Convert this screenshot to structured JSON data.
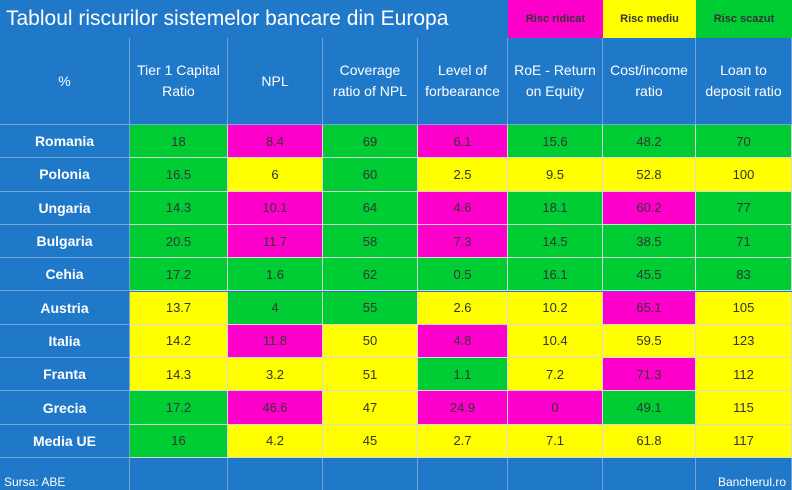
{
  "title": "Tabloul riscurilor sistemelor bancare din Europa",
  "legend": [
    {
      "label": "Risc ridicat",
      "color": "#ff00cc"
    },
    {
      "label": "Risc mediu",
      "color": "#ffff00"
    },
    {
      "label": "Risc scazut",
      "color": "#00cc33"
    }
  ],
  "colors": {
    "background": "#1f78c8",
    "high": "#ff00cc",
    "medium": "#ffff00",
    "low": "#00cc33"
  },
  "chart_data": {
    "type": "table",
    "title": "Tabloul riscurilor sistemelor bancare din Europa",
    "corner_label": "%",
    "columns": [
      "Tier 1 Capital Ratio",
      "NPL",
      "Coverage ratio of NPL",
      "Level of forbearance",
      "RoE  - Return on Equity",
      "Cost/income ratio",
      "Loan to deposit ratio"
    ],
    "rows": [
      {
        "label": "Romania",
        "values": [
          "18",
          "8.4",
          "69",
          "6.1",
          "15.6",
          "48.2",
          "70"
        ],
        "risk": [
          "low",
          "high",
          "low",
          "high",
          "low",
          "low",
          "low"
        ]
      },
      {
        "label": "Polonia",
        "values": [
          "16.5",
          "6",
          "60",
          "2.5",
          "9.5",
          "52.8",
          "100"
        ],
        "risk": [
          "low",
          "medium",
          "low",
          "medium",
          "medium",
          "medium",
          "medium"
        ]
      },
      {
        "label": "Ungaria",
        "values": [
          "14.3",
          "10.1",
          "64",
          "4.6",
          "18.1",
          "60.2",
          "77"
        ],
        "risk": [
          "low",
          "high",
          "low",
          "high",
          "low",
          "high",
          "low"
        ]
      },
      {
        "label": "Bulgaria",
        "values": [
          "20.5",
          "11.7",
          "58",
          "7.3",
          "14.5",
          "38.5",
          "71"
        ],
        "risk": [
          "low",
          "high",
          "low",
          "high",
          "low",
          "low",
          "low"
        ]
      },
      {
        "label": "Cehia",
        "values": [
          "17.2",
          "1.6",
          "62",
          "0.5",
          "16.1",
          "45.5",
          "83"
        ],
        "risk": [
          "low",
          "low",
          "low",
          "low",
          "low",
          "low",
          "low"
        ]
      },
      {
        "label": "Austria",
        "values": [
          "13.7",
          "4",
          "55",
          "2.6",
          "10.2",
          "65.1",
          "105"
        ],
        "risk": [
          "medium",
          "low",
          "low",
          "medium",
          "medium",
          "high",
          "medium"
        ]
      },
      {
        "label": "Italia",
        "values": [
          "14.2",
          "11.8",
          "50",
          "4.8",
          "10.4",
          "59.5",
          "123"
        ],
        "risk": [
          "medium",
          "high",
          "medium",
          "high",
          "medium",
          "medium",
          "medium"
        ]
      },
      {
        "label": "Franta",
        "values": [
          "14.3",
          "3.2",
          "51",
          "1.1",
          "7.2",
          "71.3",
          "112"
        ],
        "risk": [
          "medium",
          "medium",
          "medium",
          "low",
          "medium",
          "high",
          "medium"
        ]
      },
      {
        "label": "Grecia",
        "values": [
          "17.2",
          "46.6",
          "47",
          "24.9",
          "0",
          "49.1",
          "115"
        ],
        "risk": [
          "low",
          "high",
          "medium",
          "high",
          "high",
          "low",
          "medium"
        ]
      },
      {
        "label": "Media UE",
        "values": [
          "16",
          "4.2",
          "45",
          "2.7",
          "7.1",
          "61.8",
          "117"
        ],
        "risk": [
          "low",
          "medium",
          "medium",
          "medium",
          "medium",
          "medium",
          "medium"
        ]
      }
    ]
  },
  "footer": {
    "source": "Sursa: ABE",
    "brand": "Bancherul.ro"
  }
}
